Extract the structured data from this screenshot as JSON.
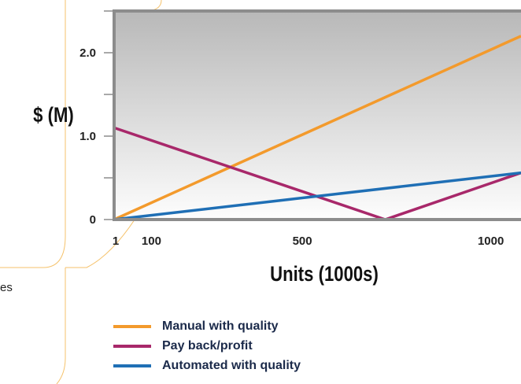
{
  "chart_data": {
    "type": "line",
    "title": "",
    "xlabel": "Units (1000s)",
    "ylabel": "$ (M)",
    "x_ticks": [
      1,
      100,
      500,
      1000
    ],
    "x_tick_labels": [
      "1",
      "100",
      "500",
      "1000"
    ],
    "y_ticks": [
      0,
      0.5,
      1.0,
      1.5,
      2.0,
      2.5
    ],
    "y_tick_labels": [
      "0",
      "",
      "1.0",
      "",
      "2.0",
      ""
    ],
    "xlim": [
      1,
      1080
    ],
    "ylim": [
      0,
      2.5
    ],
    "series": [
      {
        "name": "Manual with quality",
        "color": "#f39a2c",
        "x": [
          1,
          1080
        ],
        "y": [
          0,
          2.2
        ]
      },
      {
        "name": "Pay back/profit",
        "color": "#a8286a",
        "x": [
          1,
          720,
          1080
        ],
        "y": [
          1.1,
          0,
          0.56
        ]
      },
      {
        "name": "Automated with quality",
        "color": "#1f6fb5",
        "x": [
          1,
          1080
        ],
        "y": [
          0,
          0.56
        ]
      }
    ],
    "grid": false,
    "legend_position": "bottom"
  },
  "side_text": "es",
  "colors": {
    "plot_border": "#8c8c8c",
    "plot_top": "#b8b8b8",
    "plot_bottom": "#fdfdfd",
    "deco_line": "#f5c26b"
  }
}
